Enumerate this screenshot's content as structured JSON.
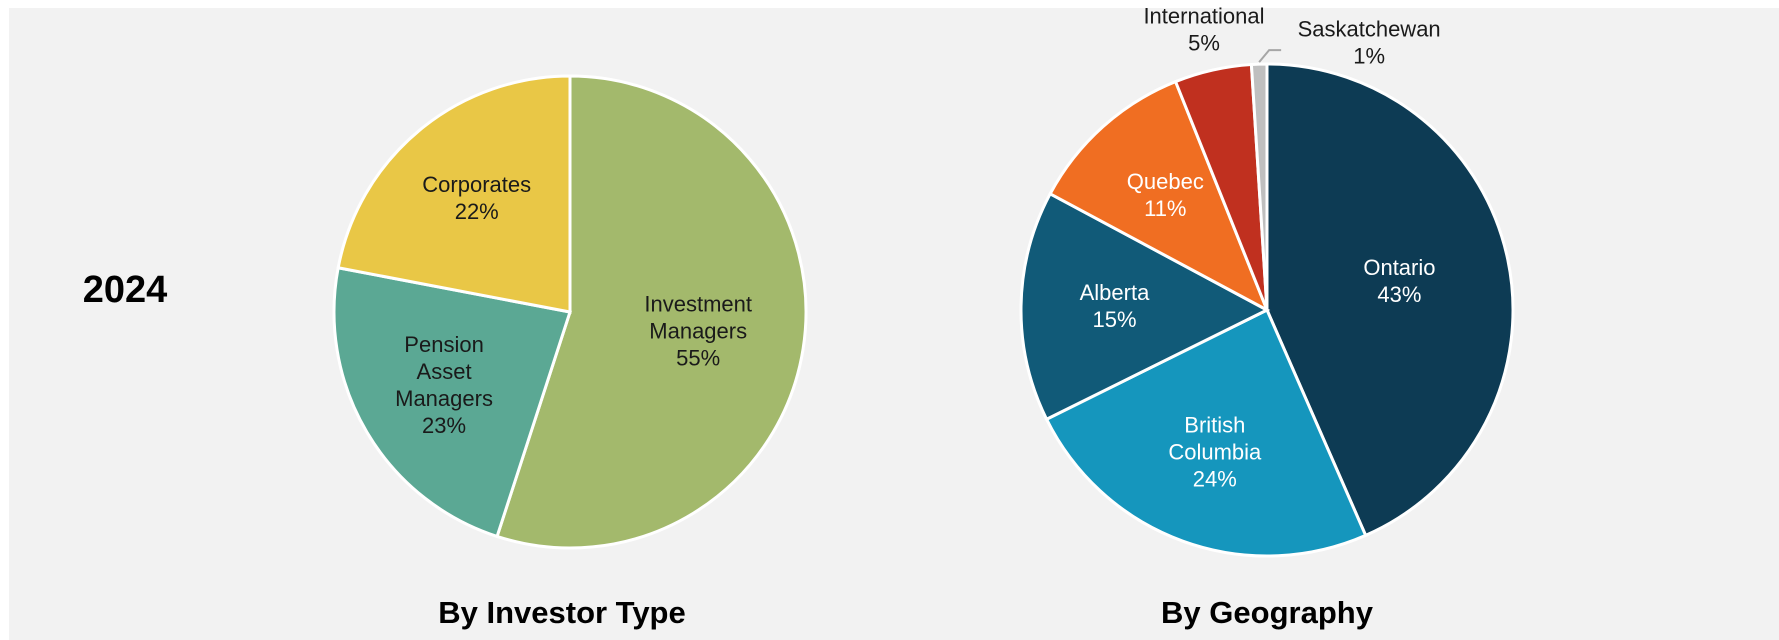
{
  "year": "2024",
  "chart_data": [
    {
      "type": "pie",
      "title": "By Investor Type",
      "categories": [
        "Investment Managers",
        "Pension Asset Managers",
        "Corporates"
      ],
      "values": [
        55,
        23,
        22
      ],
      "value_labels": [
        "55%",
        "23%",
        "22%"
      ],
      "colors": [
        "#a3b96c",
        "#5ba894",
        "#e9c746"
      ]
    },
    {
      "type": "pie",
      "title": "By Geography",
      "categories": [
        "Ontario",
        "British Columbia",
        "Alberta",
        "Quebec",
        "International",
        "Saskatchewan"
      ],
      "values": [
        43,
        24,
        15,
        11,
        5,
        1
      ],
      "value_labels": [
        "43%",
        "24%",
        "15%",
        "11%",
        "5%",
        "1%"
      ],
      "colors": [
        "#0d3b54",
        "#1596bd",
        "#115a78",
        "#f06e22",
        "#c0301f",
        "#bfbfbf"
      ]
    }
  ]
}
